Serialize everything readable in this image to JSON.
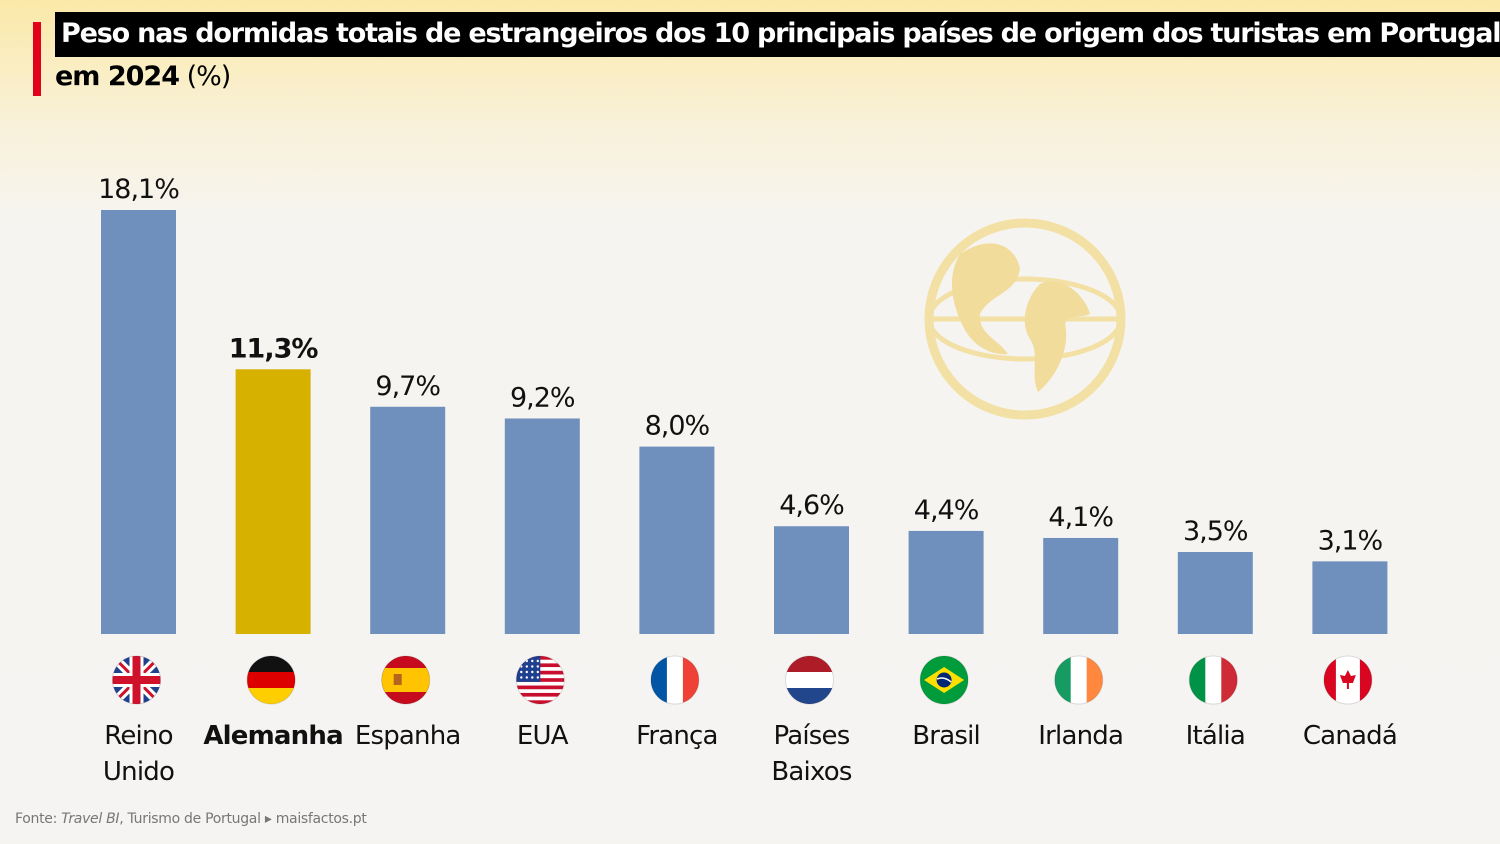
{
  "title": {
    "boxed": "Peso nas dormidas totais de estrangeiros dos 10 principais países de origem dos turistas em Portugal",
    "comma": ",",
    "line2_bold": "em 2024",
    "line2_unit": " (%)"
  },
  "source": {
    "prefix": "Fonte: ",
    "italic": "Travel BI",
    "rest": ", Turismo de Portugal ▸ maisfactos.pt"
  },
  "colors": {
    "bar": "#6f8fbd",
    "highlight_bar": "#d6b100",
    "accent": "#e3001b"
  },
  "chart_data": {
    "type": "bar",
    "categories": [
      "Reino Unido",
      "Alemanha",
      "Espanha",
      "EUA",
      "França",
      "Países Baixos",
      "Brasil",
      "Irlanda",
      "Itália",
      "Canadá"
    ],
    "category_lines": [
      [
        "Reino",
        "Unido"
      ],
      [
        "Alemanha"
      ],
      [
        "Espanha"
      ],
      [
        "EUA"
      ],
      [
        "França"
      ],
      [
        "Países",
        "Baixos"
      ],
      [
        "Brasil"
      ],
      [
        "Irlanda"
      ],
      [
        "Itália"
      ],
      [
        "Canadá"
      ]
    ],
    "values": [
      18.1,
      11.3,
      9.7,
      9.2,
      8.0,
      4.6,
      4.4,
      4.1,
      3.5,
      3.1
    ],
    "value_labels": [
      "18,1%",
      "11,3%",
      "9,7%",
      "9,2%",
      "8,0%",
      "4,6%",
      "4,4%",
      "4,1%",
      "3,5%",
      "3,1%"
    ],
    "highlight": "Alemanha",
    "flags": [
      "uk-flag-icon",
      "germany-flag-icon",
      "spain-flag-icon",
      "usa-flag-icon",
      "france-flag-icon",
      "netherlands-flag-icon",
      "brazil-flag-icon",
      "ireland-flag-icon",
      "italy-flag-icon",
      "canada-flag-icon"
    ],
    "ylim": [
      0,
      18.1
    ],
    "grid": false,
    "legend": "none"
  }
}
